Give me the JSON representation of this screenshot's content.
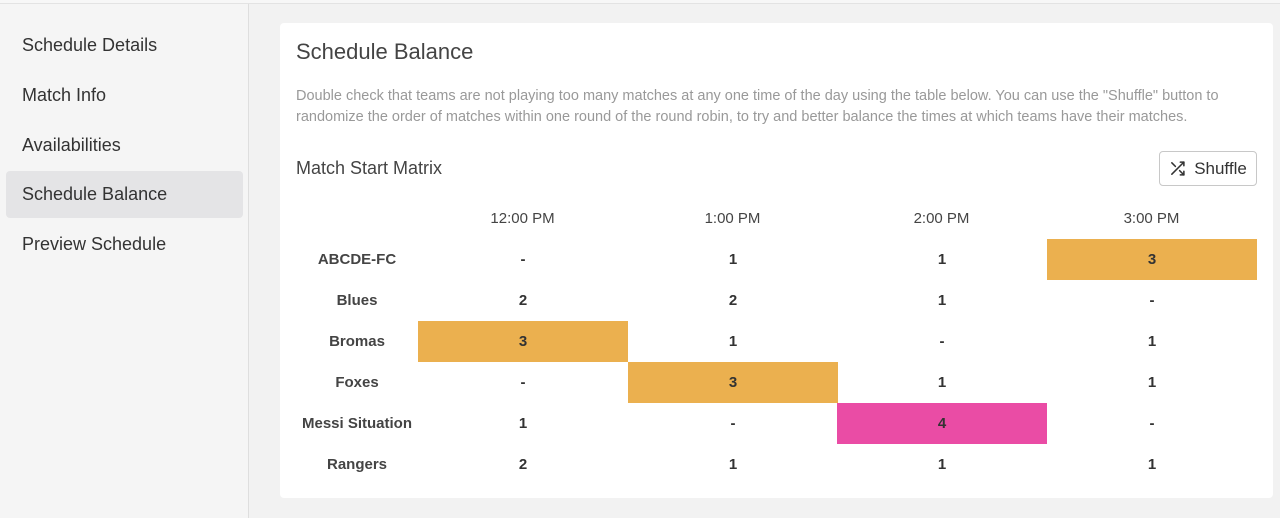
{
  "sidebar": {
    "items": [
      {
        "label": "Schedule Details",
        "active": false
      },
      {
        "label": "Match Info",
        "active": false
      },
      {
        "label": "Availabilities",
        "active": false
      },
      {
        "label": "Schedule Balance",
        "active": true
      },
      {
        "label": "Preview Schedule",
        "active": false
      }
    ]
  },
  "card": {
    "title": "Schedule Balance",
    "description": "Double check that teams are not playing too many matches at any one time of the day using the table below. You can use the \"Shuffle\" button to randomize the order of matches within one round of the round robin, to try and better balance the times at which teams have their matches.",
    "matrix_title": "Match Start Matrix",
    "shuffle_label": "Shuffle",
    "shuffle_icon": "shuffle-icon"
  },
  "matrix": {
    "columns": [
      "12:00 PM",
      "1:00 PM",
      "2:00 PM",
      "3:00 PM"
    ],
    "rows": [
      {
        "team": "ABCDE-FC",
        "values": [
          "-",
          "1",
          "1",
          "3"
        ],
        "highlight": [
          null,
          null,
          null,
          "warn"
        ]
      },
      {
        "team": "Blues",
        "values": [
          "2",
          "2",
          "1",
          "-"
        ],
        "highlight": [
          null,
          null,
          null,
          null
        ]
      },
      {
        "team": "Bromas",
        "values": [
          "3",
          "1",
          "-",
          "1"
        ],
        "highlight": [
          "warn",
          null,
          null,
          null
        ]
      },
      {
        "team": "Foxes",
        "values": [
          "-",
          "3",
          "1",
          "1"
        ],
        "highlight": [
          null,
          "warn",
          null,
          null
        ]
      },
      {
        "team": "Messi Situation",
        "values": [
          "1",
          "-",
          "4",
          "-"
        ],
        "highlight": [
          null,
          null,
          "danger",
          null
        ]
      },
      {
        "team": "Rangers",
        "values": [
          "2",
          "1",
          "1",
          "1"
        ],
        "highlight": [
          null,
          null,
          null,
          null
        ]
      }
    ]
  },
  "colors": {
    "warn": "#ebb04f",
    "danger": "#ea4ca5"
  }
}
